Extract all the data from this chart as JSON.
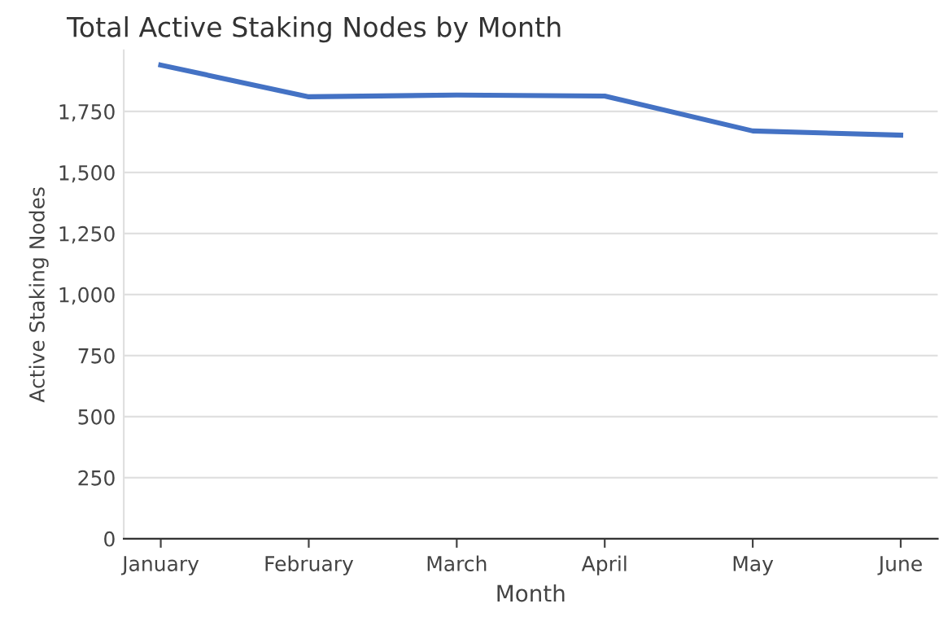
{
  "chart_data": {
    "type": "line",
    "title": "Total Active Staking Nodes by Month",
    "xlabel": "Month",
    "ylabel": "Active Staking Nodes",
    "categories": [
      "January",
      "February",
      "March",
      "April",
      "May",
      "June"
    ],
    "series": [
      {
        "color": "#4472c4",
        "values": [
          1940,
          1810,
          1817,
          1813,
          1670,
          1653
        ]
      }
    ],
    "ylim": [
      0,
      2000
    ],
    "yticks": [
      0,
      {
        "value": 250,
        "label": "250"
      },
      {
        "value": 500,
        "label": "500"
      },
      {
        "value": 750,
        "label": "750"
      },
      {
        "value": 1000,
        "label": "1,000"
      },
      {
        "value": 1250,
        "label": "1,250"
      },
      {
        "value": 1500,
        "label": "1,500"
      },
      {
        "value": 1750,
        "label": "1,750"
      }
    ],
    "grid": "y",
    "marker": "none",
    "line_style": "solid"
  }
}
